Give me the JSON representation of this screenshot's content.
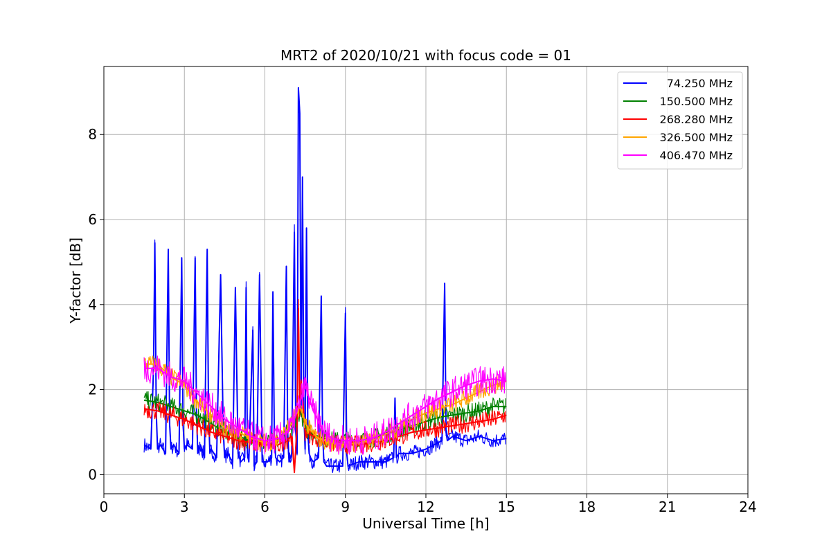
{
  "chart_data": {
    "type": "line",
    "title": "MRT2 of 2020/10/21 with focus code = 01",
    "xlabel": "Universal Time [h]",
    "ylabel": "Y-factor [dB]",
    "xlim": [
      0,
      24
    ],
    "ylim": [
      -0.45,
      9.6
    ],
    "xticks": [
      0,
      3,
      6,
      9,
      12,
      15,
      18,
      21,
      24
    ],
    "yticks": [
      0,
      2,
      4,
      6,
      8
    ],
    "grid": true,
    "legend_position": "top-right",
    "series": [
      {
        "name": " 74.250 MHz",
        "color": "#0000ff",
        "x": [
          1.5,
          1.75,
          1.85,
          1.9,
          1.95,
          2.0,
          2.1,
          2.3,
          2.4,
          2.45,
          2.5,
          2.6,
          2.8,
          2.9,
          2.95,
          3.0,
          3.1,
          3.3,
          3.4,
          3.45,
          3.5,
          3.6,
          3.75,
          3.85,
          3.9,
          3.95,
          4.0,
          4.2,
          4.35,
          4.45,
          4.5,
          4.6,
          4.8,
          4.9,
          5.0,
          5.1,
          5.25,
          5.3,
          5.35,
          5.4,
          5.55,
          5.6,
          5.7,
          5.8,
          5.9,
          6.1,
          6.25,
          6.3,
          6.35,
          6.4,
          6.55,
          6.7,
          6.8,
          6.85,
          6.9,
          7.0,
          7.1,
          7.15,
          7.2,
          7.25,
          7.3,
          7.35,
          7.4,
          7.45,
          7.5,
          7.55,
          7.6,
          7.65,
          7.7,
          7.8,
          8.0,
          8.1,
          8.15,
          8.2,
          8.3,
          8.5,
          8.9,
          9.0,
          9.05,
          9.1,
          9.5,
          10.0,
          10.5,
          10.8,
          10.85,
          10.9,
          11.0,
          11.5,
          12.0,
          12.3,
          12.6,
          12.7,
          12.75,
          12.8,
          13.0,
          13.5,
          14.0,
          14.5,
          15.0
        ],
        "y": [
          0.7,
          0.6,
          2.5,
          5.45,
          1.5,
          0.6,
          0.7,
          0.5,
          5.3,
          1.2,
          0.6,
          0.7,
          0.5,
          5.1,
          1.2,
          0.6,
          0.7,
          0.6,
          5.1,
          1.5,
          0.5,
          0.7,
          0.4,
          5.3,
          1.5,
          0.5,
          0.6,
          0.4,
          4.7,
          1.0,
          0.4,
          0.5,
          0.3,
          4.4,
          0.5,
          0.3,
          0.4,
          4.4,
          0.5,
          0.3,
          3.4,
          0.2,
          0.3,
          4.7,
          0.3,
          0.3,
          0.4,
          4.3,
          1.0,
          0.4,
          0.3,
          0.4,
          4.9,
          1.0,
          0.3,
          0.5,
          5.7,
          1.0,
          0.5,
          9.1,
          8.5,
          1.5,
          7.0,
          1.5,
          0.6,
          5.8,
          1.0,
          0.5,
          0.4,
          0.3,
          0.4,
          4.2,
          1.0,
          0.3,
          0.2,
          0.2,
          0.2,
          3.8,
          0.5,
          0.2,
          0.3,
          0.3,
          0.3,
          0.4,
          1.8,
          0.4,
          0.5,
          0.5,
          0.6,
          0.7,
          0.8,
          4.5,
          1.0,
          0.8,
          0.9,
          0.8,
          0.9,
          0.8,
          0.85
        ]
      },
      {
        "name": "150.500 MHz",
        "color": "#008000",
        "x": [
          1.5,
          2.0,
          2.5,
          3.0,
          3.5,
          4.0,
          4.5,
          5.0,
          5.5,
          6.0,
          6.5,
          7.0,
          7.3,
          7.6,
          8.0,
          8.5,
          9.0,
          9.5,
          10.0,
          10.5,
          11.0,
          11.5,
          12.0,
          12.5,
          13.0,
          13.5,
          14.0,
          14.5,
          15.0
        ],
        "y": [
          1.75,
          1.7,
          1.6,
          1.5,
          1.4,
          1.2,
          1.0,
          0.9,
          0.8,
          0.75,
          0.8,
          1.1,
          1.5,
          1.0,
          0.9,
          0.8,
          0.8,
          0.8,
          0.85,
          0.95,
          1.05,
          1.15,
          1.25,
          1.35,
          1.4,
          1.45,
          1.5,
          1.6,
          1.6
        ]
      },
      {
        "name": "268.280 MHz",
        "color": "#ff0000",
        "x": [
          1.5,
          2.0,
          2.5,
          3.0,
          3.5,
          4.0,
          4.5,
          5.0,
          5.5,
          6.0,
          6.5,
          7.0,
          7.1,
          7.2,
          7.25,
          7.3,
          7.35,
          7.5,
          8.0,
          8.5,
          9.0,
          9.5,
          10.0,
          10.5,
          11.0,
          11.5,
          12.0,
          12.5,
          13.0,
          13.5,
          14.0,
          14.5,
          15.0
        ],
        "y": [
          1.55,
          1.5,
          1.4,
          1.3,
          1.15,
          1.0,
          0.9,
          0.8,
          0.75,
          0.7,
          0.7,
          0.9,
          0.05,
          1.2,
          3.9,
          1.5,
          2.2,
          1.0,
          0.85,
          0.75,
          0.7,
          0.7,
          0.75,
          0.8,
          0.9,
          1.0,
          1.05,
          1.1,
          1.15,
          1.2,
          1.25,
          1.3,
          1.4
        ]
      },
      {
        "name": "326.500 MHz",
        "color": "#ffa500",
        "x": [
          1.5,
          2.0,
          2.5,
          3.0,
          3.5,
          4.0,
          4.5,
          5.0,
          5.5,
          6.0,
          6.5,
          7.0,
          7.3,
          7.6,
          8.0,
          8.5,
          9.0,
          9.5,
          10.0,
          10.5,
          11.0,
          11.5,
          12.0,
          12.5,
          13.0,
          13.5,
          14.0,
          14.5,
          15.0
        ],
        "y": [
          2.6,
          2.6,
          2.3,
          2.1,
          1.7,
          1.4,
          1.1,
          1.0,
          0.85,
          0.75,
          0.8,
          1.2,
          1.6,
          1.1,
          0.85,
          0.75,
          0.7,
          0.75,
          0.8,
          0.95,
          1.1,
          1.3,
          1.45,
          1.55,
          1.65,
          1.8,
          1.95,
          2.1,
          2.2
        ]
      },
      {
        "name": "406.470 MHz",
        "color": "#ff00ff",
        "x": [
          1.5,
          2.0,
          2.5,
          3.0,
          3.5,
          4.0,
          4.5,
          5.0,
          5.5,
          6.0,
          6.5,
          7.0,
          7.3,
          7.5,
          7.8,
          8.2,
          8.5,
          9.0,
          9.5,
          10.0,
          10.5,
          11.0,
          11.5,
          12.0,
          12.5,
          13.0,
          13.5,
          14.0,
          14.5,
          15.0
        ],
        "y": [
          2.5,
          2.5,
          2.3,
          2.2,
          1.9,
          1.6,
          1.3,
          1.1,
          0.9,
          0.8,
          0.85,
          1.1,
          1.7,
          2.1,
          1.5,
          1.0,
          0.85,
          0.8,
          0.8,
          0.85,
          1.0,
          1.2,
          1.4,
          1.6,
          1.8,
          1.95,
          2.1,
          2.2,
          2.25,
          2.2
        ]
      }
    ]
  }
}
